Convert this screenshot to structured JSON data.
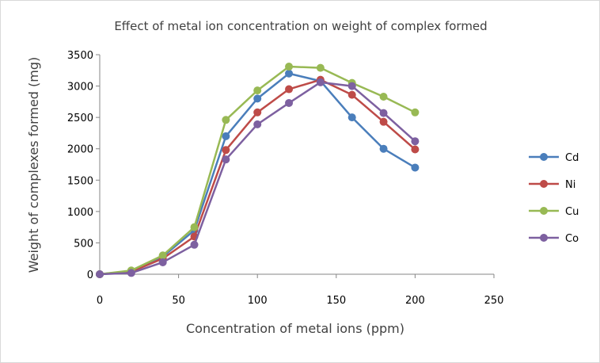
{
  "chart_data": {
    "type": "line",
    "title": "Effect of metal ion concentration on weight of complex formed",
    "xlabel": "Concentration of metal ions (ppm)",
    "ylabel": "Weight of complexes formed (mg)",
    "xlim": [
      0,
      250
    ],
    "ylim": [
      0,
      3500
    ],
    "xticks": [
      0,
      50,
      100,
      150,
      200,
      250
    ],
    "yticks": [
      0,
      500,
      1000,
      1500,
      2000,
      2500,
      3000,
      3500
    ],
    "grid": false,
    "legend_position": "right",
    "x": [
      0,
      20,
      40,
      60,
      80,
      100,
      120,
      140,
      160,
      180,
      200
    ],
    "series": [
      {
        "name": "Cd",
        "color": "#4a7ebb",
        "values": [
          0,
          50,
          280,
          700,
          2200,
          2800,
          3200,
          3080,
          2500,
          2000,
          1700
        ]
      },
      {
        "name": "Ni",
        "color": "#be4b48",
        "values": [
          0,
          40,
          250,
          600,
          1980,
          2580,
          2950,
          3100,
          2860,
          2430,
          1990
        ]
      },
      {
        "name": "Cu",
        "color": "#98b954",
        "values": [
          0,
          60,
          300,
          750,
          2460,
          2930,
          3310,
          3290,
          3050,
          2830,
          2580
        ]
      },
      {
        "name": "Co",
        "color": "#7d60a0",
        "values": [
          0,
          20,
          190,
          470,
          1830,
          2390,
          2730,
          3060,
          3000,
          2570,
          2120
        ]
      }
    ]
  }
}
